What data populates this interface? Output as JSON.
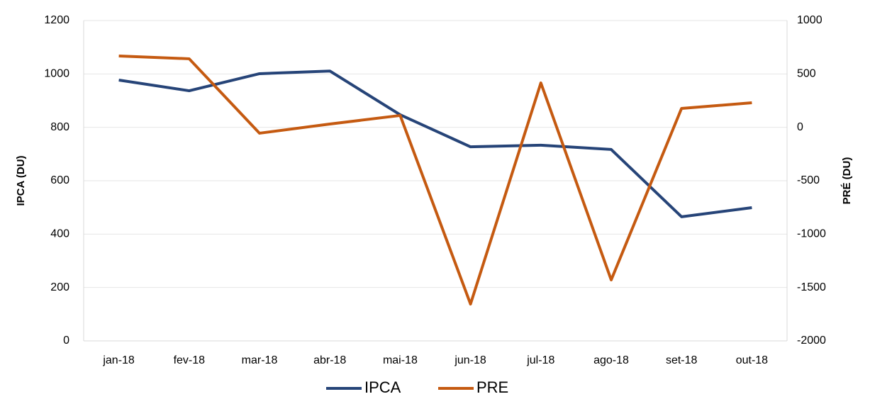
{
  "chart_data": {
    "type": "line",
    "categories": [
      "jan-18",
      "fev-18",
      "mar-18",
      "abr-18",
      "mai-18",
      "jun-18",
      "jul-18",
      "ago-18",
      "set-18",
      "out-18"
    ],
    "series": [
      {
        "name": "IPCA",
        "color": "#264478",
        "values": [
          977,
          937,
          1001,
          1011,
          847,
          727,
          733,
          717,
          465,
          499
        ]
      },
      {
        "name": "PRE",
        "color": "#c55a11",
        "axis": "y2",
        "values": [
          668,
          642,
          -55,
          31,
          111,
          -1655,
          416,
          -1429,
          177,
          230
        ]
      }
    ],
    "ylabel": "IPCA (DU)",
    "y2label": "PRÉ (DU)",
    "ylim": [
      0,
      1200
    ],
    "yticks": [
      0,
      200,
      400,
      600,
      800,
      1000,
      1200
    ],
    "y2lim": [
      -2000,
      1000
    ],
    "y2ticks": [
      -2000,
      -1500,
      -1000,
      -500,
      0,
      500,
      1000
    ],
    "grid": true,
    "legend": "bottom"
  }
}
